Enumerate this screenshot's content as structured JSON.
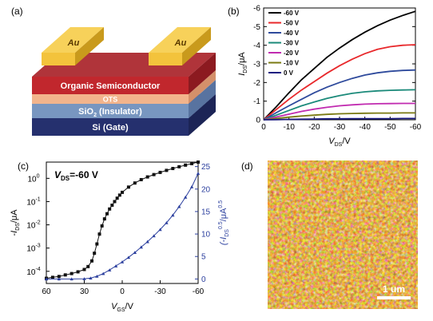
{
  "panels": {
    "a": {
      "label": "(a)",
      "layers": {
        "electrode_left": "Au",
        "electrode_right": "Au",
        "semiconductor": "Organic Semiconductor",
        "sam": "OTS",
        "insulator_main": "SiO",
        "insulator_sub": "2",
        "insulator_rest": " (Insulator)",
        "gate": "Si (Gate)"
      }
    },
    "b": {
      "label": "(b)"
    },
    "c": {
      "label": "(c)",
      "annotation_main": "V",
      "annotation_sub": "DS",
      "annotation_rest": "=-60 V"
    },
    "d": {
      "label": "(d)",
      "scalebar": "1 um"
    }
  },
  "colors": {
    "gold": "#f3c33c",
    "semiconductor": "#c1272d",
    "ots": "#f2b48c",
    "sio2": "#7896c0",
    "si": "#25306e"
  },
  "chart_data": [
    {
      "panel": "b",
      "type": "line",
      "xlabel_main": "V",
      "xlabel_sub": "DS",
      "xlabel_rest": "/V",
      "ylabel_main": "I",
      "ylabel_sub": "DS",
      "ylabel_rest": "/μA",
      "xlim": [
        0,
        -60
      ],
      "ylim": [
        0,
        -6
      ],
      "xticks": [
        0,
        -10,
        -20,
        -30,
        -40,
        -50,
        -60
      ],
      "xtick_labels": [
        "0",
        "-10",
        "-20",
        "-30",
        "-40",
        "-50",
        "-60"
      ],
      "yticks": [
        0,
        -1,
        -2,
        -3,
        -4,
        -5,
        -6
      ],
      "ytick_labels": [
        "0",
        "-1",
        "-2",
        "-3",
        "-4",
        "-5",
        "-6"
      ],
      "legend_position": "top-left",
      "x": [
        0,
        -5,
        -10,
        -15,
        -20,
        -25,
        -30,
        -35,
        -40,
        -45,
        -50,
        -55,
        -60
      ],
      "series": [
        {
          "name": "-60 V",
          "color": "#000000",
          "values": [
            0,
            -0.7,
            -1.45,
            -2.15,
            -2.75,
            -3.35,
            -3.85,
            -4.3,
            -4.7,
            -5.05,
            -5.35,
            -5.6,
            -5.82
          ]
        },
        {
          "name": "-50 V",
          "color": "#e8282b",
          "values": [
            0,
            -0.55,
            -1.1,
            -1.6,
            -2.05,
            -2.5,
            -2.9,
            -3.25,
            -3.55,
            -3.78,
            -3.92,
            -4.0,
            -4.03
          ]
        },
        {
          "name": "-40 V",
          "color": "#2e4a9c",
          "values": [
            0,
            -0.38,
            -0.75,
            -1.1,
            -1.45,
            -1.75,
            -2.0,
            -2.22,
            -2.4,
            -2.52,
            -2.6,
            -2.65,
            -2.67
          ]
        },
        {
          "name": "-30 V",
          "color": "#1b8a7a",
          "values": [
            0,
            -0.25,
            -0.5,
            -0.75,
            -0.95,
            -1.15,
            -1.3,
            -1.42,
            -1.5,
            -1.55,
            -1.58,
            -1.6,
            -1.61
          ]
        },
        {
          "name": "-20 V",
          "color": "#c12bb0",
          "values": [
            0,
            -0.15,
            -0.3,
            -0.45,
            -0.57,
            -0.67,
            -0.75,
            -0.8,
            -0.84,
            -0.86,
            -0.87,
            -0.88,
            -0.88
          ]
        },
        {
          "name": "-10 V",
          "color": "#7a7a12",
          "values": [
            0,
            -0.07,
            -0.14,
            -0.2,
            -0.25,
            -0.29,
            -0.32,
            -0.34,
            -0.35,
            -0.36,
            -0.36,
            -0.37,
            -0.37
          ]
        },
        {
          "name": "0 V",
          "color": "#1a1a80",
          "values": [
            0,
            -0.01,
            -0.02,
            -0.03,
            -0.04,
            -0.05,
            -0.05,
            -0.06,
            -0.06,
            -0.06,
            -0.06,
            -0.07,
            -0.07
          ]
        }
      ]
    },
    {
      "panel": "c",
      "type": "scatter",
      "xlabel_main": "V",
      "xlabel_sub": "GS",
      "xlabel_rest": "/V",
      "ylabel_main": "-I",
      "ylabel_sub": "DS",
      "ylabel_rest": "/μA",
      "y2label_main": "(-I",
      "y2label_sub": "DS",
      "y2label_sup": "0.5",
      "y2label_rest": "/μA",
      "y2label_sup2": "0.5",
      "xlim": [
        60,
        -60
      ],
      "ylim_log": [
        3e-05,
        5
      ],
      "y2lim": [
        -1,
        26
      ],
      "xticks": [
        60,
        30,
        0,
        -30,
        -60
      ],
      "xtick_labels": [
        "60",
        "30",
        "0",
        "-30",
        "-60"
      ],
      "yticks": [
        0.0001,
        0.001,
        0.01,
        0.1,
        1
      ],
      "ytick_labels": [
        {
          "base": "10",
          "exp": "-4"
        },
        {
          "base": "10",
          "exp": "-3"
        },
        {
          "base": "10",
          "exp": "-2"
        },
        {
          "base": "10",
          "exp": "-1"
        },
        {
          "base": "10",
          "exp": "0"
        }
      ],
      "y2ticks": [
        0,
        5,
        10,
        15,
        20,
        25
      ],
      "y2tick_labels": [
        "0",
        "5",
        "10",
        "15",
        "20",
        "25"
      ],
      "series": [
        {
          "axis": "left-log",
          "color": "#111111",
          "x": [
            60,
            55,
            50,
            45,
            40,
            35,
            30,
            27,
            24,
            22,
            20,
            18,
            16,
            14,
            12,
            10,
            8,
            6,
            4,
            2,
            0,
            -5,
            -10,
            -15,
            -20,
            -25,
            -30,
            -35,
            -40,
            -45,
            -50,
            -55,
            -60
          ],
          "values": [
            5e-05,
            5.5e-05,
            6e-05,
            7e-05,
            8e-05,
            9.5e-05,
            0.00012,
            0.00016,
            0.00028,
            0.0006,
            0.0015,
            0.004,
            0.009,
            0.018,
            0.03,
            0.048,
            0.07,
            0.1,
            0.14,
            0.19,
            0.25,
            0.42,
            0.63,
            0.88,
            1.15,
            1.45,
            1.8,
            2.2,
            2.65,
            3.15,
            3.7,
            4.3,
            5.0
          ]
        },
        {
          "axis": "right",
          "color": "#2b3f9e",
          "x": [
            60,
            50,
            40,
            30,
            25,
            20,
            15,
            10,
            5,
            0,
            -5,
            -10,
            -15,
            -20,
            -25,
            -30,
            -35,
            -40,
            -45,
            -50,
            -55,
            -60
          ],
          "values": [
            0,
            0,
            0,
            0.05,
            0.2,
            0.6,
            1.2,
            2.0,
            2.9,
            3.8,
            4.8,
            5.9,
            7.1,
            8.3,
            9.6,
            11.0,
            12.5,
            14.2,
            16.1,
            18.2,
            20.5,
            23.5
          ]
        }
      ]
    }
  ]
}
